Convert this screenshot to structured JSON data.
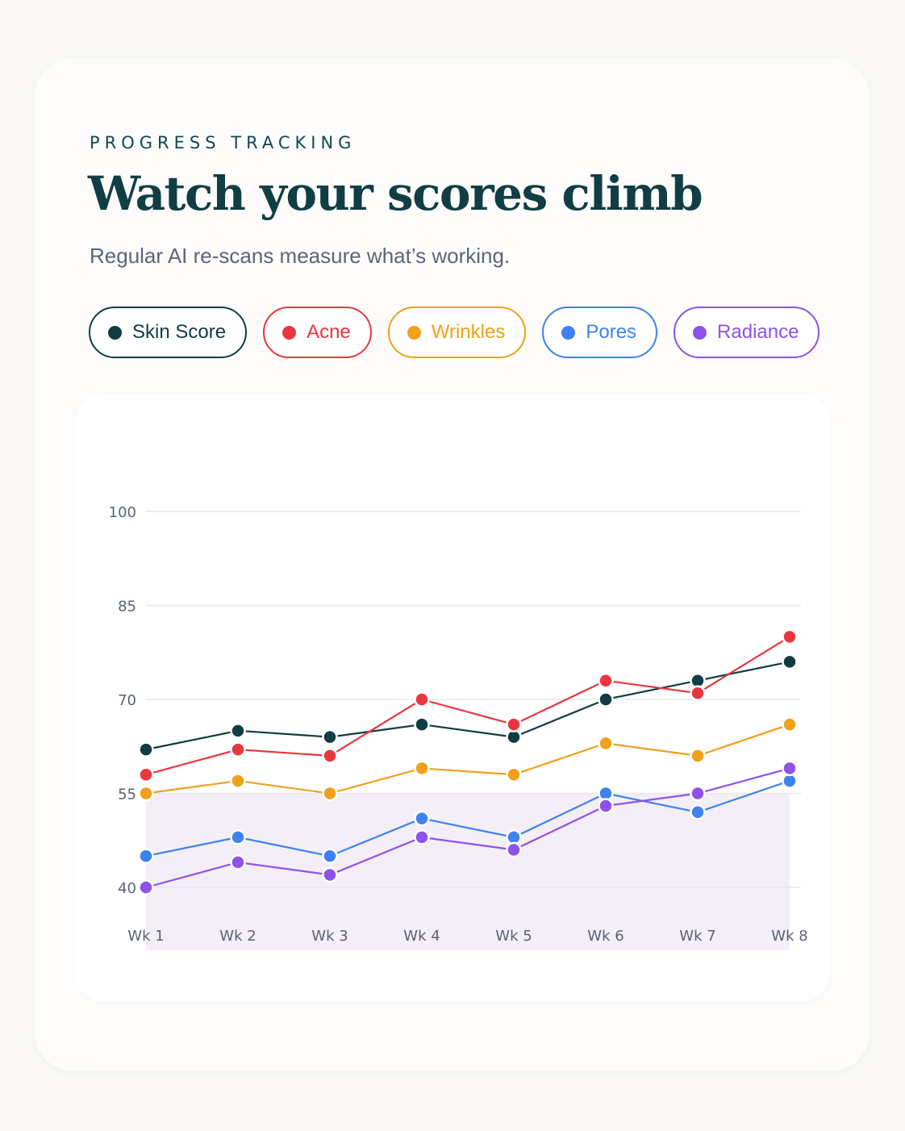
{
  "header": {
    "eyebrow": "PROGRESS TRACKING",
    "title": "Watch your scores climb",
    "subtitle": "Regular AI re-scans measure what’s working."
  },
  "legend": [
    {
      "label": "Skin Score",
      "color": "#0f3d43"
    },
    {
      "label": "Acne",
      "color": "#e8373e"
    },
    {
      "label": "Wrinkles",
      "color": "#f0a01a"
    },
    {
      "label": "Pores",
      "color": "#3d82f0"
    },
    {
      "label": "Radiance",
      "color": "#8e52ea"
    }
  ],
  "chart_data": {
    "type": "line",
    "categories": [
      "Wk 1",
      "Wk 2",
      "Wk 3",
      "Wk 4",
      "Wk 5",
      "Wk 6",
      "Wk 7",
      "Wk 8"
    ],
    "ylim": [
      30,
      100
    ],
    "yticks": [
      40,
      55,
      70,
      85,
      100
    ],
    "grid": true,
    "series": [
      {
        "name": "Skin Score",
        "color": "#0f3d43",
        "values": [
          62,
          65,
          64,
          66,
          64,
          70,
          73,
          76
        ]
      },
      {
        "name": "Acne",
        "color": "#e8373e",
        "values": [
          58,
          62,
          61,
          70,
          66,
          73,
          71,
          80
        ]
      },
      {
        "name": "Wrinkles",
        "color": "#f0a01a",
        "values": [
          55,
          57,
          55,
          59,
          58,
          63,
          61,
          66
        ]
      },
      {
        "name": "Pores",
        "color": "#3d82f0",
        "values": [
          45,
          48,
          45,
          51,
          48,
          55,
          52,
          57
        ]
      },
      {
        "name": "Radiance",
        "color": "#8e52ea",
        "values": [
          40,
          44,
          42,
          48,
          46,
          53,
          55,
          59
        ]
      }
    ],
    "band": {
      "from": 30,
      "to": 55,
      "color": "#f3eef7"
    }
  }
}
